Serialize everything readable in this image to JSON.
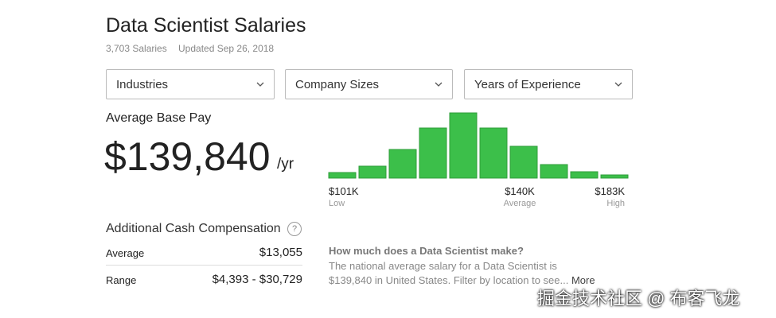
{
  "header": {
    "title": "Data Scientist Salaries",
    "count": "3,703 Salaries",
    "updated": "Updated Sep 26, 2018"
  },
  "filters": [
    "Industries",
    "Company Sizes",
    "Years of Experience"
  ],
  "base_pay": {
    "label": "Average Base Pay",
    "amount": "$139,840",
    "unit": "/yr"
  },
  "histogram": {
    "values": [
      7,
      15,
      36,
      63,
      82,
      63,
      40,
      17,
      8,
      4
    ],
    "color": "#3cbf4a",
    "labels": [
      {
        "amount": "$101K",
        "caption": "Low"
      },
      {
        "amount": "$140K",
        "caption": "Average"
      },
      {
        "amount": "$183K",
        "caption": "High"
      }
    ]
  },
  "cash": {
    "title": "Additional Cash Compensation",
    "help": "?",
    "rows": [
      [
        "Average",
        "$13,055"
      ],
      [
        "Range",
        "$4,393 - $30,729"
      ]
    ]
  },
  "about": {
    "question": "How much does a Data Scientist make?",
    "lines": [
      "The national average salary for a Data Scientist is",
      "$139,840 in United States. Filter by location to see..."
    ],
    "more": "More"
  },
  "watermark": "掘金技术社区 @ 布客飞龙"
}
